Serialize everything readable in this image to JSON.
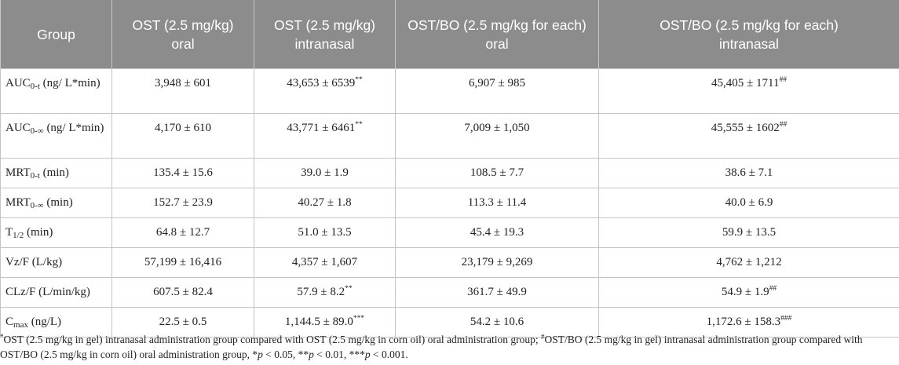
{
  "table": {
    "headers": [
      {
        "line1": "Group",
        "line2": ""
      },
      {
        "line1": "OST (2.5 mg/kg)",
        "line2": "oral"
      },
      {
        "line1": "OST (2.5 mg/kg)",
        "line2": "intranasal"
      },
      {
        "line1": "OST/BO (2.5 mg/kg for each)",
        "line2": "oral"
      },
      {
        "line1": "OST/BO (2.5 mg/kg for each)",
        "line2": "intranasal"
      }
    ],
    "rows": [
      {
        "label": {
          "main": "AUC",
          "sub": "0-t",
          "rest": " (ng/ L*min)"
        },
        "cells": [
          {
            "value": "3,948 ± 601",
            "mark": ""
          },
          {
            "value": "43,653 ± 6539",
            "mark": "**"
          },
          {
            "value": "6,907 ± 985",
            "mark": ""
          },
          {
            "value": "45,405 ± 1711",
            "mark": "##"
          }
        ]
      },
      {
        "label": {
          "main": "AUC",
          "sub": "0-∞",
          "rest": " (ng/ L*min)"
        },
        "cells": [
          {
            "value": "4,170 ± 610",
            "mark": ""
          },
          {
            "value": "43,771 ± 6461",
            "mark": "**"
          },
          {
            "value": "7,009 ± 1,050",
            "mark": ""
          },
          {
            "value": "45,555 ± 1602",
            "mark": "##"
          }
        ]
      },
      {
        "label": {
          "main": "MRT",
          "sub": "0-t",
          "rest": " (min)"
        },
        "cells": [
          {
            "value": "135.4 ± 15.6",
            "mark": ""
          },
          {
            "value": "39.0 ± 1.9",
            "mark": ""
          },
          {
            "value": "108.5 ± 7.7",
            "mark": ""
          },
          {
            "value": "38.6 ± 7.1",
            "mark": ""
          }
        ]
      },
      {
        "label": {
          "main": "MRT",
          "sub": "0-∞",
          "rest": " (min)"
        },
        "cells": [
          {
            "value": "152.7 ± 23.9",
            "mark": ""
          },
          {
            "value": "40.27 ± 1.8",
            "mark": ""
          },
          {
            "value": "113.3 ± 11.4",
            "mark": ""
          },
          {
            "value": "40.0 ± 6.9",
            "mark": ""
          }
        ]
      },
      {
        "label": {
          "main": "T",
          "sub": "1/2",
          "rest": " (min)"
        },
        "cells": [
          {
            "value": "64.8 ± 12.7",
            "mark": ""
          },
          {
            "value": "51.0 ± 13.5",
            "mark": ""
          },
          {
            "value": "45.4 ± 19.3",
            "mark": ""
          },
          {
            "value": "59.9 ± 13.5",
            "mark": ""
          }
        ]
      },
      {
        "label": {
          "main": "Vz/F (L/kg)",
          "sub": "",
          "rest": ""
        },
        "cells": [
          {
            "value": "57,199 ± 16,416",
            "mark": ""
          },
          {
            "value": "4,357 ± 1,607",
            "mark": ""
          },
          {
            "value": "23,179 ± 9,269",
            "mark": ""
          },
          {
            "value": "4,762 ± 1,212",
            "mark": ""
          }
        ]
      },
      {
        "label": {
          "main": "CLz/F (L/min/kg)",
          "sub": "",
          "rest": ""
        },
        "cells": [
          {
            "value": "607.5 ± 82.4",
            "mark": ""
          },
          {
            "value": "57.9 ± 8.2",
            "mark": "**"
          },
          {
            "value": "361.7 ± 49.9",
            "mark": ""
          },
          {
            "value": "54.9 ± 1.9",
            "mark": "##"
          }
        ]
      },
      {
        "label": {
          "main": "C",
          "sub": "max",
          "rest": " (ng/L)"
        },
        "cells": [
          {
            "value": "22.5 ± 0.5",
            "mark": ""
          },
          {
            "value": "1,144.5 ± 89.0",
            "mark": "***"
          },
          {
            "value": "54.2 ± 10.6",
            "mark": ""
          },
          {
            "value": "1,172.6 ± 158.3",
            "mark": "###"
          }
        ]
      }
    ]
  },
  "footnote": {
    "mark1": "*",
    "text1": "OST (2.5 mg/kg in gel) intranasal administration group compared with OST (2.5 mg/kg in corn oil) oral administration group; ",
    "mark2": "#",
    "text2": "OST/BO (2.5 mg/kg in gel) intranasal administration group compared with OST/BO (2.5 mg/kg in corn oil) oral administration group, *",
    "p1": "p",
    "t1": " < 0.05, **",
    "p2": "p",
    "t2": " < 0.01, ***",
    "p3": "p",
    "t3": " < 0.001."
  }
}
